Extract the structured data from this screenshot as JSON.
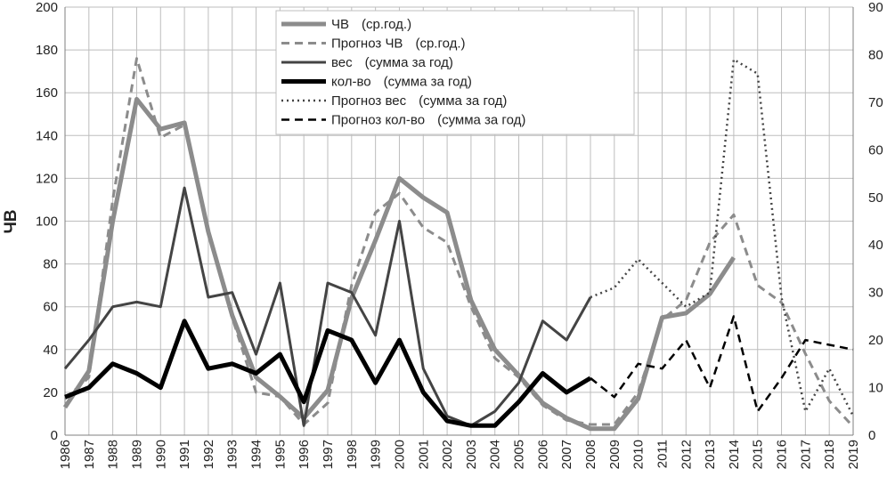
{
  "chart_data": {
    "type": "line",
    "title": "",
    "ylabel": "ЧВ",
    "y2label": "",
    "ylim": [
      0,
      200
    ],
    "y2lim": [
      0,
      90
    ],
    "yticks": [
      0,
      20,
      40,
      60,
      80,
      100,
      120,
      140,
      160,
      180,
      200
    ],
    "y2ticks": [
      0,
      10,
      20,
      30,
      40,
      50,
      60,
      70,
      80,
      90
    ],
    "grid": true,
    "legend_position": "top-center",
    "categories": [
      "1986",
      "1987",
      "1988",
      "1989",
      "1990",
      "1991",
      "1992",
      "1993",
      "1994",
      "1995",
      "1996",
      "1997",
      "1998",
      "1999",
      "2000",
      "2001",
      "2002",
      "2003",
      "2004",
      "2005",
      "2006",
      "2007",
      "2008",
      "2009",
      "2010",
      "2011",
      "2012",
      "2013",
      "2014",
      "2015",
      "2016",
      "2017",
      "2018",
      "2019"
    ],
    "series": [
      {
        "name": "ЧВ",
        "note": "(ср.год.)",
        "axis": "left",
        "color": "#8c8c8c",
        "width": 5,
        "dash": "",
        "values": [
          13,
          30,
          100,
          157,
          143,
          146,
          95,
          56,
          27,
          18,
          8,
          21,
          64,
          91,
          120,
          111,
          104,
          63,
          40,
          28,
          15,
          8,
          3,
          3,
          17,
          55,
          57,
          66,
          83,
          null,
          null,
          null,
          null,
          null
        ]
      },
      {
        "name": "Прогноз ЧВ",
        "note": "(ср.год.)",
        "axis": "left",
        "color": "#8c8c8c",
        "width": 3,
        "dash": "9,6",
        "values": [
          17,
          27,
          110,
          176,
          139,
          145,
          95,
          55,
          20,
          18,
          5,
          15,
          70,
          104,
          113,
          97,
          90,
          60,
          36,
          27,
          14,
          7,
          5,
          5,
          20,
          54,
          63,
          90,
          103,
          70,
          62,
          38,
          16,
          4
        ]
      },
      {
        "name": "вес",
        "note": "(сумма за год)",
        "axis": "right",
        "color": "#444444",
        "width": 3,
        "dash": "",
        "values": [
          14,
          20,
          27,
          28,
          27,
          52,
          29,
          30,
          17,
          32,
          2,
          32,
          30,
          21,
          45,
          14,
          4,
          2,
          5,
          11,
          24,
          20,
          29,
          null,
          null,
          null,
          null,
          null,
          null,
          null,
          null,
          null,
          null,
          null
        ]
      },
      {
        "name": "кол-во",
        "note": "(сумма за год)",
        "axis": "right",
        "color": "#000000",
        "width": 5,
        "dash": "",
        "values": [
          8,
          10,
          15,
          13,
          10,
          24,
          14,
          15,
          13,
          17,
          7,
          22,
          20,
          11,
          20,
          9,
          3,
          2,
          2,
          7,
          13,
          9,
          12,
          null,
          null,
          null,
          null,
          null,
          null,
          null,
          null,
          null,
          null,
          null
        ]
      },
      {
        "name": "Прогноз вес",
        "note": "(сумма за год)",
        "axis": "right",
        "color": "#444444",
        "width": 2.5,
        "dash": "2,4",
        "values": [
          null,
          null,
          null,
          null,
          null,
          null,
          null,
          null,
          null,
          null,
          null,
          null,
          null,
          null,
          null,
          null,
          null,
          null,
          null,
          null,
          null,
          null,
          29,
          31,
          37,
          32,
          27,
          30,
          79,
          76,
          29,
          5,
          14,
          4
        ]
      },
      {
        "name": "Прогноз кол-во",
        "note": "(сумма за год)",
        "axis": "right",
        "color": "#000000",
        "width": 2.5,
        "dash": "9,6",
        "values": [
          null,
          null,
          null,
          null,
          null,
          null,
          null,
          null,
          null,
          null,
          null,
          null,
          null,
          null,
          null,
          null,
          null,
          null,
          null,
          null,
          null,
          null,
          12,
          8,
          15,
          14,
          20,
          10,
          25,
          5,
          12,
          20,
          19,
          18
        ]
      }
    ]
  }
}
